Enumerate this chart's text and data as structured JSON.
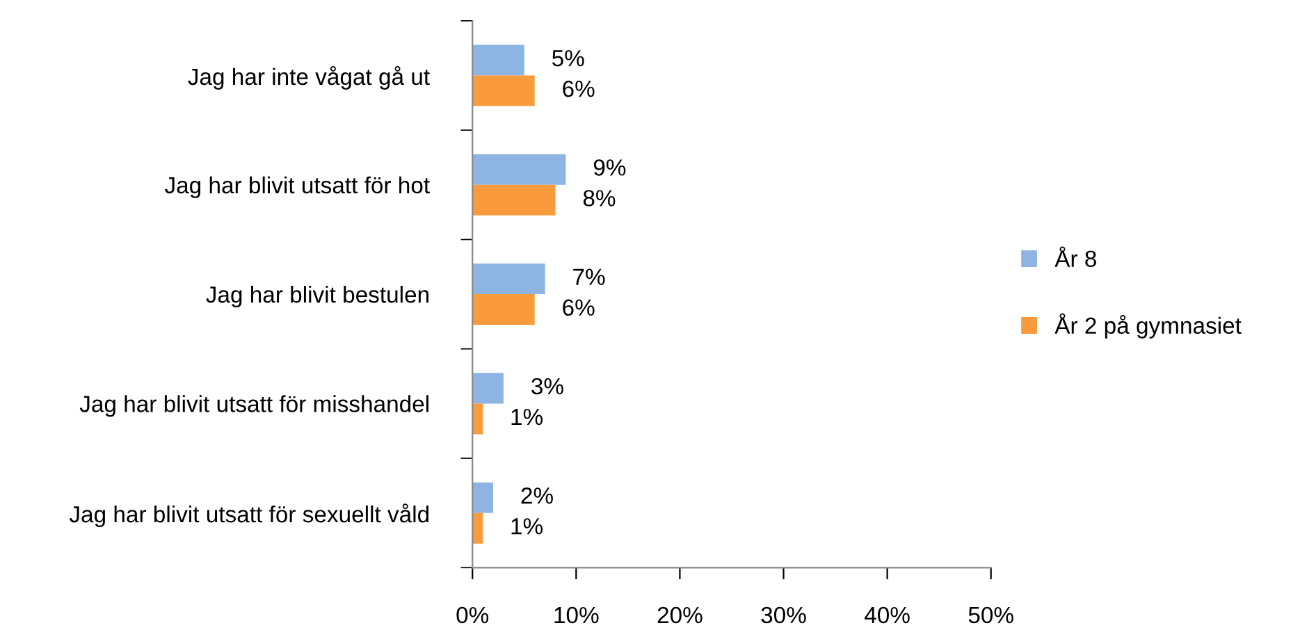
{
  "chart_data": {
    "type": "bar",
    "orientation": "horizontal",
    "categories": [
      "Jag har inte vågat gå ut",
      "Jag har blivit utsatt för hot",
      "Jag har blivit bestulen",
      "Jag har blivit utsatt för misshandel",
      "Jag har blivit utsatt för sexuellt våld"
    ],
    "series": [
      {
        "name": "År 8",
        "color": "#8eb4e3",
        "values": [
          5,
          9,
          7,
          3,
          2
        ],
        "value_labels": [
          "5%",
          "9%",
          "7%",
          "3%",
          "2%"
        ]
      },
      {
        "name": "År 2 på gymnasiet",
        "color": "#f99a3c",
        "values": [
          6,
          8,
          6,
          1,
          1
        ],
        "value_labels": [
          "6%",
          "8%",
          "6%",
          "1%",
          "1%"
        ]
      }
    ],
    "xlim": [
      0,
      50
    ],
    "xticks": [
      {
        "value": 0,
        "label": "0%"
      },
      {
        "value": 10,
        "label": "10%"
      },
      {
        "value": 20,
        "label": "20%"
      },
      {
        "value": 30,
        "label": "30%"
      },
      {
        "value": 40,
        "label": "40%"
      },
      {
        "value": 50,
        "label": "50%"
      }
    ],
    "grid": false,
    "legend": "right"
  }
}
